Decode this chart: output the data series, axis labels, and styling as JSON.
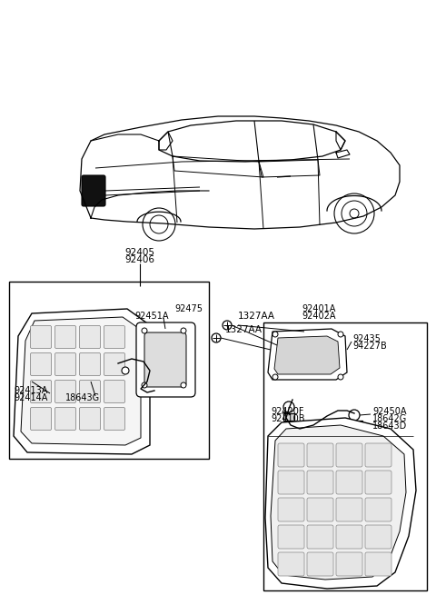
{
  "bg_color": "#ffffff",
  "line_color": "#000000",
  "fig_width": 4.8,
  "fig_height": 6.55,
  "dpi": 100,
  "labels": {
    "top_label1": "92405",
    "top_label2": "92406",
    "lbl_92413A": "92413A",
    "lbl_92414A": "92414A",
    "lbl_18643G": "18643G",
    "lbl_92451A": "92451A",
    "lbl_92475": "92475",
    "lbl_1327AA_top": "1327AA",
    "lbl_1327AA_bot": "1327AA",
    "lbl_92401A": "92401A",
    "lbl_92402A": "92402A",
    "lbl_92435": "92435",
    "lbl_94227B": "94227B",
    "lbl_92420F": "92420F",
    "lbl_92410B": "92410B",
    "lbl_92450A": "92450A",
    "lbl_18642G": "18642G",
    "lbl_18643D": "18643D"
  }
}
